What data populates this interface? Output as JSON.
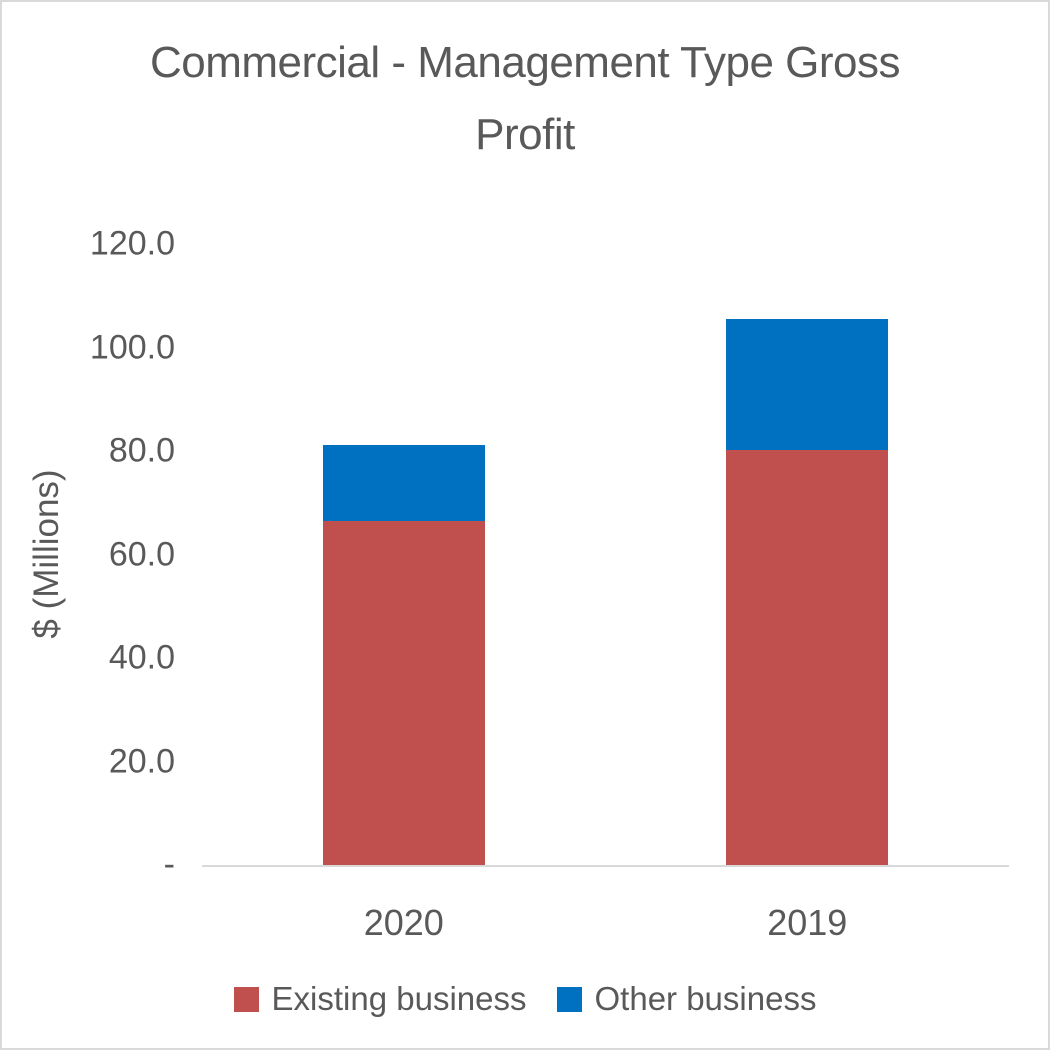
{
  "chart_data": {
    "type": "bar",
    "stacked": true,
    "title": "Commercial - Management Type Gross Profit",
    "title_lines": [
      "Commercial - Management Type Gross",
      "Profit"
    ],
    "ylabel": "$ (Millions)",
    "xlabel": "",
    "categories": [
      "2020",
      "2019"
    ],
    "series": [
      {
        "name": "Existing business",
        "color": "#C0504D",
        "values": [
          66.4,
          80.2
        ]
      },
      {
        "name": "Other business",
        "color": "#0070C0",
        "values": [
          14.8,
          25.3
        ]
      }
    ],
    "totals": [
      81.2,
      105.5
    ],
    "ylim": [
      0,
      120
    ],
    "yticks": [
      {
        "value": 120,
        "label": "120.0"
      },
      {
        "value": 100,
        "label": "100.0"
      },
      {
        "value": 80,
        "label": "80.0"
      },
      {
        "value": 60,
        "label": "60.0"
      },
      {
        "value": 40,
        "label": "40.0"
      },
      {
        "value": 20,
        "label": "20.0"
      },
      {
        "value": 0,
        "label": "-"
      }
    ],
    "grid": false,
    "legend_position": "bottom",
    "colors": {
      "text": "#595959",
      "axis_line": "#D9D9D9",
      "background": "#FFFFFF",
      "border": "#D9D9D9"
    }
  }
}
